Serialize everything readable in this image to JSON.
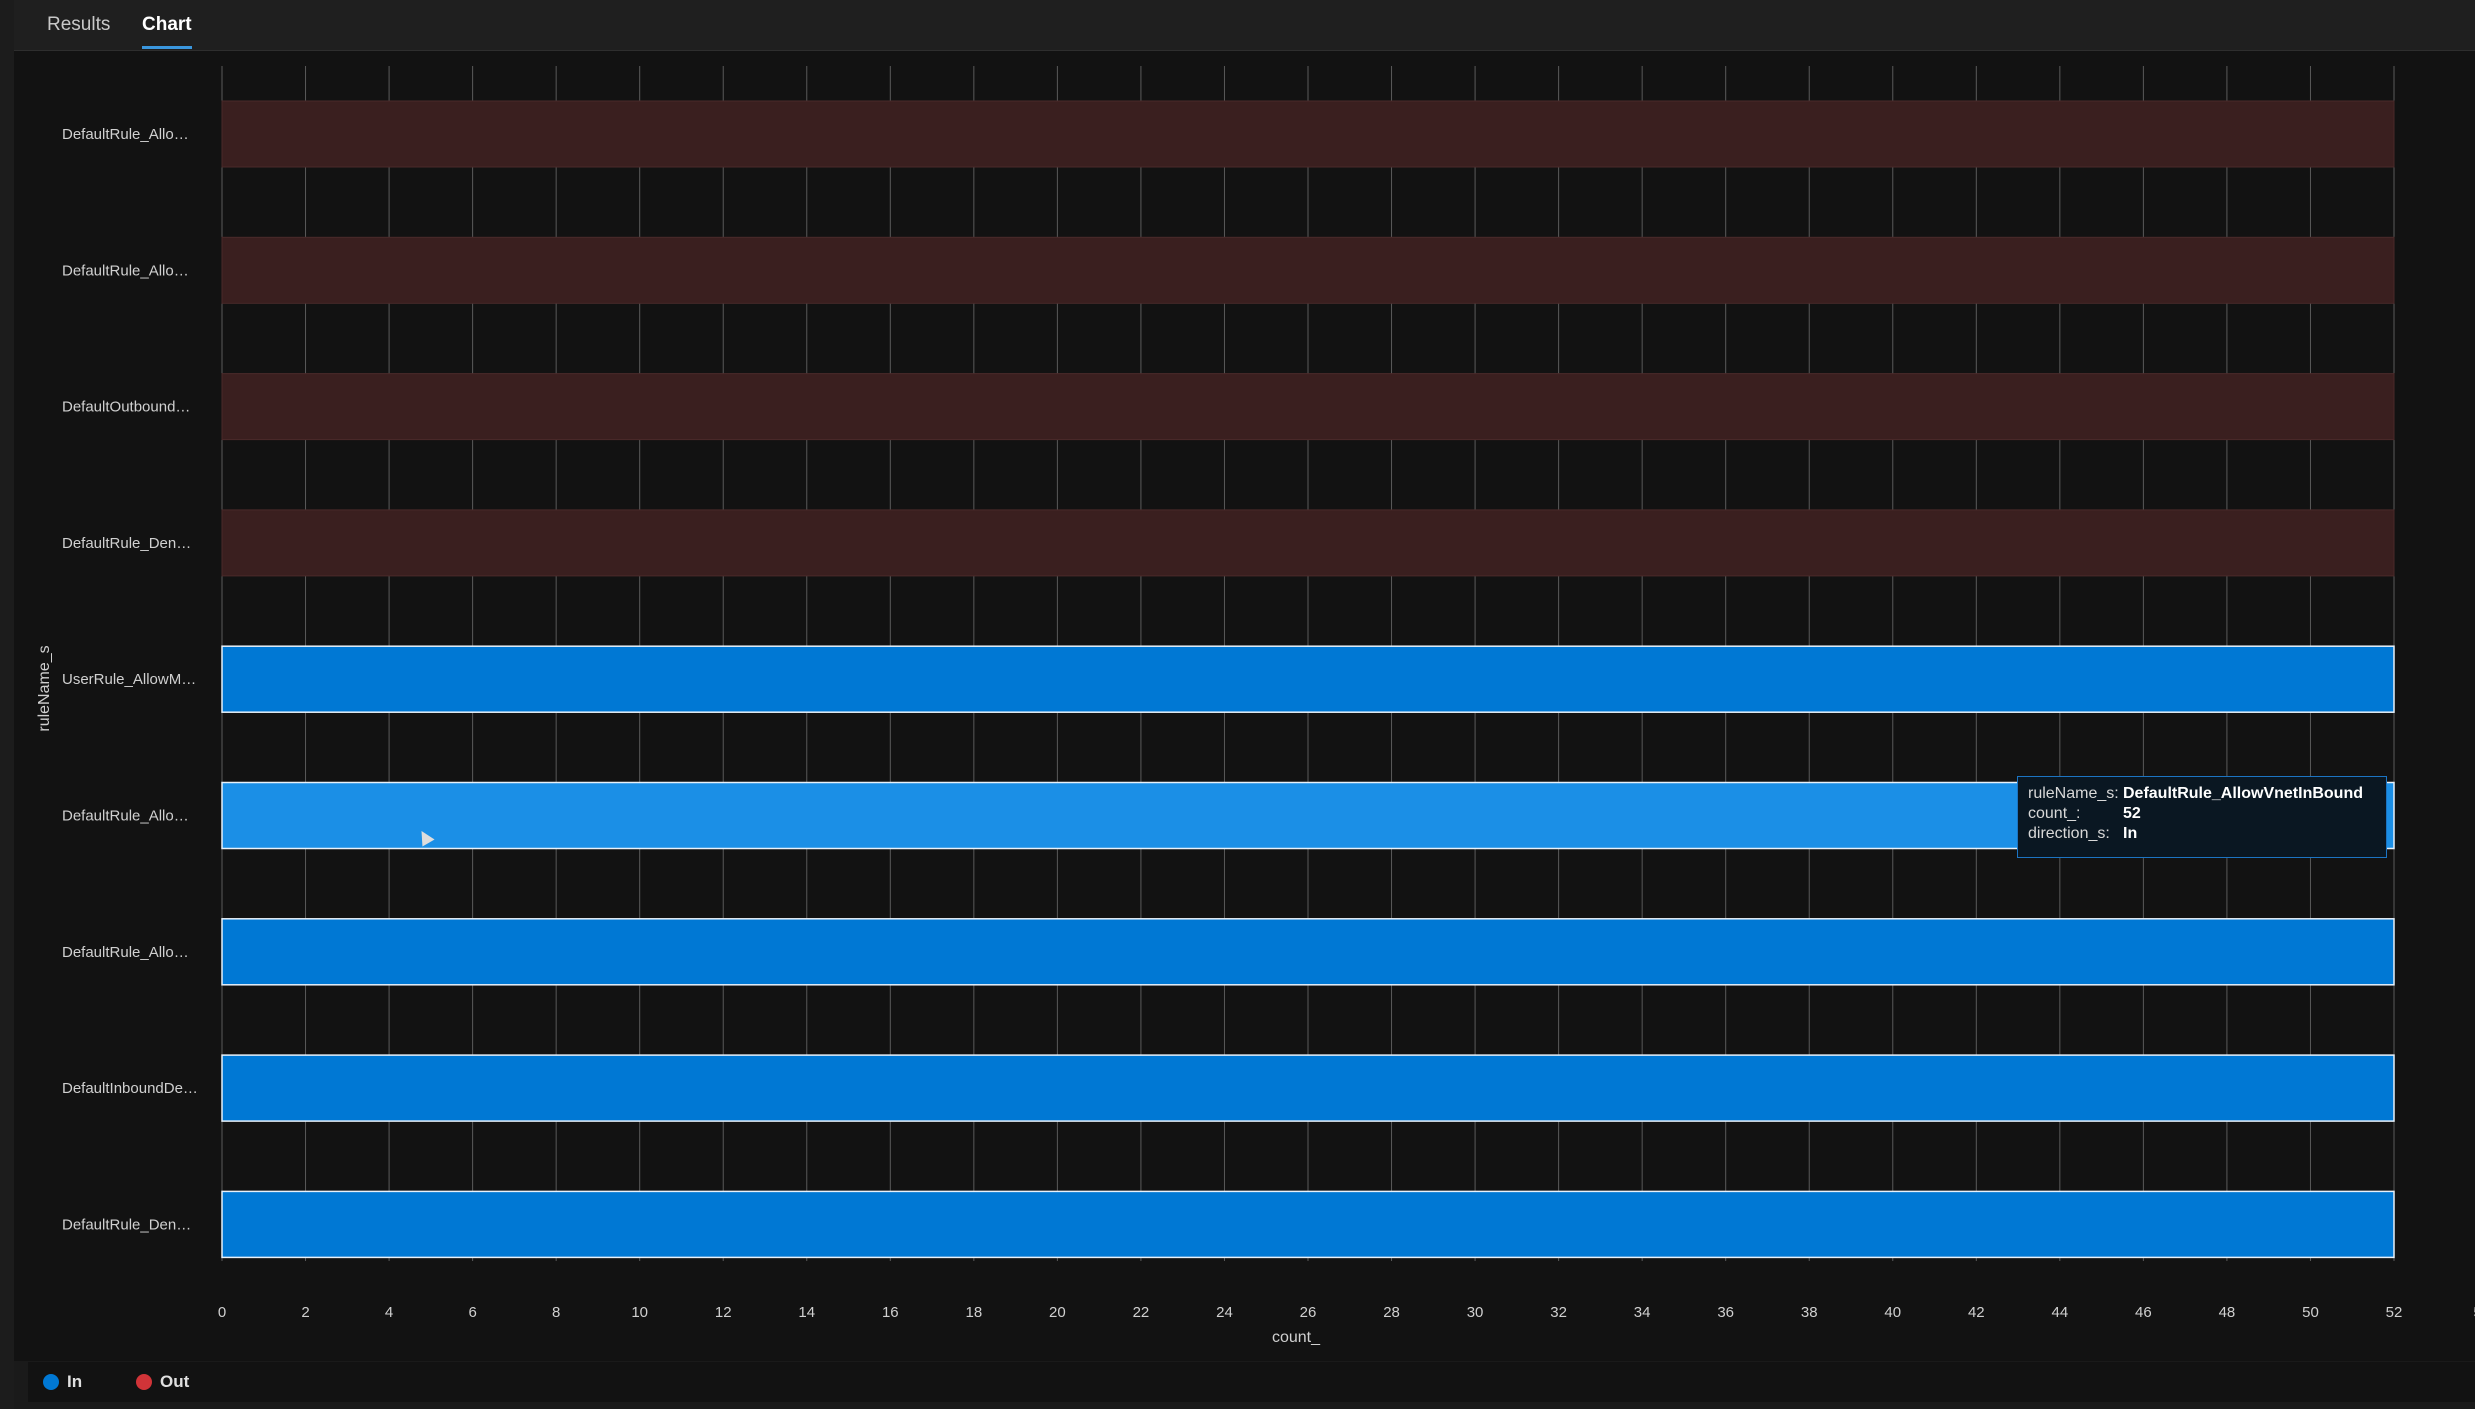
{
  "tabs": [
    {
      "label": "Results",
      "active": false
    },
    {
      "label": "Chart",
      "active": true
    }
  ],
  "colors": {
    "accent": "#3a96dd",
    "in": "#0078d4",
    "in_hover": "#1b8fe6",
    "out": "#d13438",
    "out_band": "#3a1f1f",
    "background": "#121212"
  },
  "chart_data": {
    "type": "bar",
    "orientation": "horizontal",
    "categories": [
      "DefaultRule_Allo…",
      "DefaultRule_Allo…",
      "DefaultOutbound…",
      "DefaultRule_Den…",
      "UserRule_AllowM…",
      "DefaultRule_Allo…",
      "DefaultRule_Allo…",
      "DefaultInboundDe…",
      "DefaultRule_Den…"
    ],
    "series": [
      {
        "name": "In",
        "color": "#0078d4",
        "values": [
          0,
          0,
          0,
          0,
          52,
          52,
          52,
          52,
          52
        ]
      },
      {
        "name": "Out",
        "color": "#d13438",
        "values": [
          52,
          52,
          52,
          52,
          0,
          0,
          0,
          0,
          0
        ]
      }
    ],
    "hover_index": 5,
    "xlabel": "count_",
    "ylabel": "ruleName_s",
    "xlim": [
      0,
      52
    ],
    "xticks": [
      0,
      2,
      4,
      6,
      8,
      10,
      12,
      14,
      16,
      18,
      20,
      22,
      24,
      26,
      28,
      30,
      32,
      34,
      36,
      38,
      40,
      42,
      44,
      46,
      48,
      50,
      52
    ],
    "xtick_overflow_label": "5",
    "grid": true,
    "legend": [
      {
        "label": "In",
        "color": "#0078d4"
      },
      {
        "label": "Out",
        "color": "#d13438"
      }
    ],
    "legend_placement": "bottom-left"
  },
  "tooltip": {
    "rows": [
      {
        "key": "ruleName_s:",
        "value": "DefaultRule_AllowVnetInBound"
      },
      {
        "key": "count_:",
        "value": "52"
      },
      {
        "key": "direction_s:",
        "value": "In"
      }
    ]
  }
}
